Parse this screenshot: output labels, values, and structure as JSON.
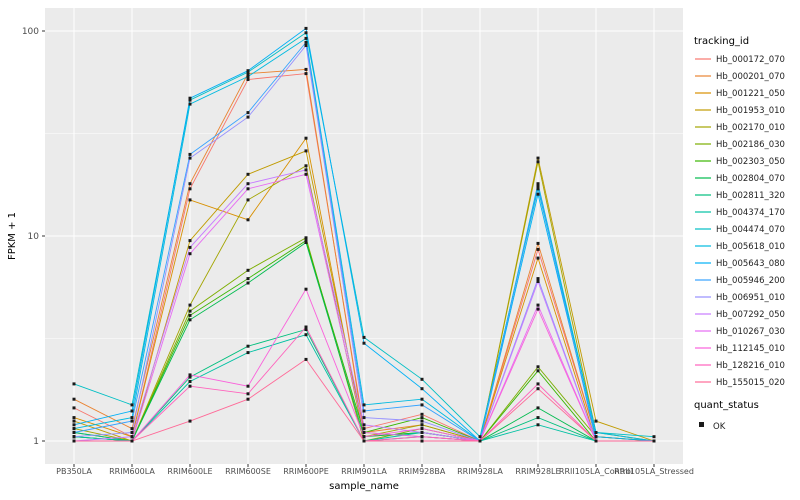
{
  "chart_data": {
    "type": "line",
    "title": "",
    "xlabel": "sample_name",
    "ylabel": "FPKM + 1",
    "y_scale": "log10",
    "y_ticks": [
      1,
      10,
      100
    ],
    "y_minor_ticks": [
      3.1623,
      31.623
    ],
    "ylim": [
      1,
      110
    ],
    "grid": true,
    "legend_position": "right",
    "legend_title": "tracking_id",
    "quant_legend_title": "quant_status",
    "quant_status_value": "OK",
    "panel_bg": "#EBEBEB",
    "grid_color": "#FFFFFF",
    "point_color": "#1A1A1A",
    "axis_text_color": "#4D4D4D",
    "categories": [
      "PB350LA",
      "RRIM600LA",
      "RRIM600LE",
      "RRIM600SE",
      "RRIM600PE",
      "RRIM901LA",
      "RRIM928BA",
      "RRIM928LA",
      "RRIM928LE",
      "RRII105LA_Control",
      "RRII105LA_Stressed"
    ],
    "series": [
      {
        "name": "Hb_000172_070",
        "color": "#F8766D",
        "values": [
          1.45,
          1.05,
          17,
          58,
          62,
          1.15,
          1.35,
          1.0,
          8.6,
          1.05,
          1.0
        ]
      },
      {
        "name": "Hb_000201_070",
        "color": "#EA8331",
        "values": [
          1.6,
          1.15,
          18,
          62,
          65,
          1.1,
          1.2,
          1.0,
          9.2,
          1.05,
          1.0
        ]
      },
      {
        "name": "Hb_001221_050",
        "color": "#D89000",
        "values": [
          1.3,
          1.05,
          15,
          12,
          30,
          1.05,
          1.1,
          1.0,
          7.8,
          1.0,
          1.0
        ]
      },
      {
        "name": "Hb_001953_010",
        "color": "#C09B00",
        "values": [
          1.25,
          1.0,
          9.5,
          20,
          26,
          1.1,
          1.05,
          1.0,
          24,
          1.25,
          1.0
        ]
      },
      {
        "name": "Hb_002170_010",
        "color": "#A3A500",
        "values": [
          1.15,
          1.0,
          4.6,
          15,
          22,
          1.05,
          1.2,
          1.0,
          23,
          1.1,
          1.0
        ]
      },
      {
        "name": "Hb_002186_030",
        "color": "#7CAE00",
        "values": [
          1.1,
          1.0,
          4.3,
          6.8,
          9.8,
          1.0,
          1.15,
          1.0,
          2.3,
          1.05,
          1.0
        ]
      },
      {
        "name": "Hb_002303_050",
        "color": "#39B600",
        "values": [
          1.05,
          1.0,
          4.1,
          6.2,
          9.5,
          1.1,
          1.3,
          1.0,
          2.2,
          1.0,
          1.0
        ]
      },
      {
        "name": "Hb_002804_070",
        "color": "#00BB4E",
        "values": [
          1.05,
          1.0,
          3.9,
          5.9,
          9.3,
          1.05,
          1.1,
          1.0,
          1.45,
          1.0,
          1.0
        ]
      },
      {
        "name": "Hb_002811_320",
        "color": "#00BF7D",
        "values": [
          1.1,
          1.0,
          2.05,
          2.9,
          3.5,
          1.0,
          1.05,
          1.0,
          1.3,
          1.0,
          1.0
        ]
      },
      {
        "name": "Hb_004374_170",
        "color": "#00C1A3",
        "values": [
          1.05,
          1.0,
          1.95,
          2.7,
          3.3,
          1.0,
          1.1,
          1.0,
          1.2,
          1.0,
          1.0
        ]
      },
      {
        "name": "Hb_004474_070",
        "color": "#00BFC4",
        "values": [
          1.9,
          1.5,
          46,
          63,
          98,
          3.2,
          2.0,
          1.05,
          17,
          1.1,
          1.05
        ]
      },
      {
        "name": "Hb_005618_010",
        "color": "#00BAE0",
        "values": [
          1.15,
          1.3,
          44,
          60,
          92,
          1.5,
          1.6,
          1.0,
          18,
          1.1,
          1.0
        ]
      },
      {
        "name": "Hb_005643_080",
        "color": "#00B0F6",
        "values": [
          1.2,
          1.4,
          47,
          64,
          103,
          3.0,
          1.8,
          1.0,
          16,
          1.05,
          1.0
        ]
      },
      {
        "name": "Hb_005946_200",
        "color": "#35A2FF",
        "values": [
          1.1,
          1.25,
          25,
          40,
          88,
          1.4,
          1.5,
          1.0,
          17.5,
          1.0,
          1.0
        ]
      },
      {
        "name": "Hb_006951_010",
        "color": "#9590FF",
        "values": [
          1.05,
          1.1,
          24,
          38,
          85,
          1.3,
          1.25,
          1.0,
          6.2,
          1.0,
          1.0
        ]
      },
      {
        "name": "Hb_007292_050",
        "color": "#C77CFF",
        "values": [
          1.0,
          1.05,
          8.8,
          18,
          21,
          1.2,
          1.1,
          1.0,
          6.0,
          1.0,
          1.0
        ]
      },
      {
        "name": "Hb_010267_030",
        "color": "#E76BF3",
        "values": [
          1.0,
          1.0,
          8.2,
          17,
          20,
          1.1,
          1.05,
          1.0,
          4.6,
          1.0,
          1.0
        ]
      },
      {
        "name": "Hb_112145_010",
        "color": "#FA62DB",
        "values": [
          1.0,
          1.0,
          2.1,
          1.85,
          5.5,
          1.05,
          1.15,
          1.0,
          4.4,
          1.0,
          1.0
        ]
      },
      {
        "name": "Hb_128216_010",
        "color": "#FF62BC",
        "values": [
          1.0,
          1.0,
          1.85,
          1.7,
          3.6,
          1.0,
          1.05,
          1.0,
          1.9,
          1.0,
          1.0
        ]
      },
      {
        "name": "Hb_155015_020",
        "color": "#FF6A98",
        "values": [
          1.0,
          1.0,
          1.25,
          1.6,
          2.5,
          1.0,
          1.0,
          1.0,
          1.8,
          1.0,
          1.0
        ]
      }
    ]
  }
}
